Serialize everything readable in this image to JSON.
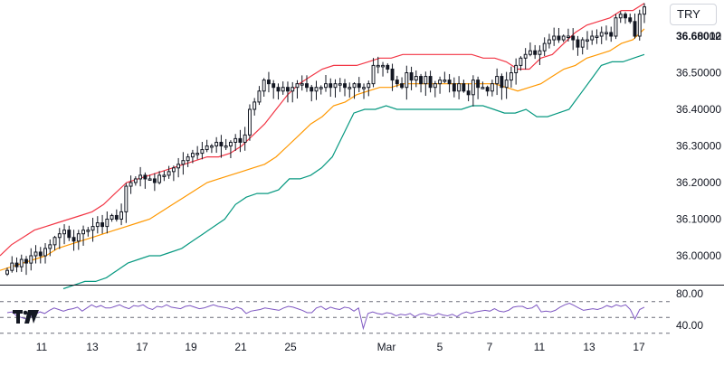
{
  "currency_selector": {
    "label": "TRY"
  },
  "logo": {
    "name": "tradingview-logo",
    "text": "TV"
  },
  "colors": {
    "candle": "#131722",
    "upper_band": "#f23645",
    "lower_band": "#089981",
    "basis": "#ff9800",
    "rsi": "#7e57c2",
    "grid_dash": "#6a6d78",
    "divider": "#131722"
  },
  "chart_data": [
    {
      "type": "candlestick",
      "title": "",
      "price_label": "36.68012",
      "x_ticks": [
        "11",
        "13",
        "17",
        "19",
        "21",
        "25",
        "Mar",
        "5",
        "7",
        "11",
        "13",
        "17"
      ],
      "y_ticks": [
        "36.60000",
        "36.50000",
        "36.40000",
        "36.30000",
        "36.20000",
        "36.10000",
        "36.00000"
      ],
      "ylim": [
        35.93,
        36.71
      ],
      "series": [
        {
          "name": "",
          "kind": "candles",
          "close": [
            35.96,
            35.98,
            35.97,
            35.99,
            35.98,
            36.0,
            36.01,
            36.0,
            36.02,
            36.03,
            36.05,
            36.06,
            36.07,
            36.05,
            36.04,
            36.06,
            36.07,
            36.07,
            36.08,
            36.09,
            36.08,
            36.1,
            36.11,
            36.1,
            36.12,
            36.19,
            36.2,
            36.21,
            36.22,
            36.21,
            36.21,
            36.2,
            36.22,
            36.22,
            36.23,
            36.24,
            36.25,
            36.26,
            36.27,
            36.28,
            36.28,
            36.29,
            36.3,
            36.3,
            36.31,
            36.3,
            36.3,
            36.31,
            36.32,
            36.31,
            36.33,
            36.4,
            36.42,
            36.45,
            36.48,
            36.47,
            36.46,
            36.45,
            36.46,
            36.45,
            36.46,
            36.47,
            36.47,
            36.46,
            36.45,
            36.46,
            36.46,
            36.47,
            36.46,
            36.47,
            36.47,
            36.46,
            36.46,
            36.47,
            36.46,
            36.46,
            36.47,
            36.52,
            36.52,
            36.52,
            36.51,
            36.48,
            36.47,
            36.46,
            36.5,
            36.48,
            36.49,
            36.47,
            36.49,
            36.46,
            36.47,
            36.48,
            36.48,
            36.47,
            36.45,
            36.47,
            36.45,
            36.44,
            36.48,
            36.46,
            36.46,
            36.45,
            36.47,
            36.49,
            36.46,
            36.48,
            36.5,
            36.52,
            36.54,
            36.55,
            36.56,
            36.55,
            36.56,
            36.58,
            36.59,
            36.6,
            36.59,
            36.6,
            36.6,
            36.59,
            36.57,
            36.59,
            36.59,
            36.6,
            36.6,
            36.61,
            36.61,
            36.6,
            36.65,
            36.66,
            36.65,
            36.64,
            36.6,
            36.66,
            36.68
          ]
        },
        {
          "name": "",
          "kind": "upper_band",
          "values": [
            36.0,
            36.03,
            36.05,
            36.07,
            36.08,
            36.09,
            36.1,
            36.11,
            36.12,
            36.14,
            36.17,
            36.2,
            36.21,
            36.22,
            36.23,
            36.24,
            36.25,
            36.26,
            36.27,
            36.27,
            36.28,
            36.3,
            36.33,
            36.36,
            36.4,
            36.44,
            36.47,
            36.49,
            36.51,
            36.52,
            36.52,
            36.52,
            36.53,
            36.54,
            36.54,
            36.55,
            36.55,
            36.55,
            36.55,
            36.55,
            36.55,
            36.55,
            36.54,
            36.54,
            36.53,
            36.51,
            36.51,
            36.54,
            36.55,
            36.58,
            36.61,
            36.63,
            36.64,
            36.65,
            36.67,
            36.67,
            36.69
          ]
        },
        {
          "name": "",
          "kind": "basis",
          "values": [
            35.96,
            35.97,
            35.98,
            35.99,
            36.0,
            36.02,
            36.03,
            36.04,
            36.05,
            36.06,
            36.07,
            36.08,
            36.09,
            36.1,
            36.12,
            36.14,
            36.16,
            36.18,
            36.2,
            36.21,
            36.22,
            36.23,
            36.24,
            36.25,
            36.27,
            36.3,
            36.33,
            36.36,
            36.38,
            36.41,
            36.42,
            36.44,
            36.45,
            36.46,
            36.46,
            36.47,
            36.47,
            36.47,
            36.47,
            36.47,
            36.47,
            36.47,
            36.47,
            36.47,
            36.46,
            36.45,
            36.46,
            36.47,
            36.49,
            36.51,
            36.52,
            36.54,
            36.55,
            36.56,
            36.58,
            36.59,
            36.62
          ]
        },
        {
          "name": "",
          "kind": "lower_band",
          "values": [
            35.91,
            35.92,
            35.93,
            35.93,
            35.94,
            35.96,
            35.98,
            35.99,
            36.0,
            36.0,
            36.01,
            36.02,
            36.04,
            36.06,
            36.08,
            36.1,
            36.14,
            36.16,
            36.17,
            36.17,
            36.18,
            36.21,
            36.21,
            36.22,
            36.24,
            36.27,
            36.33,
            36.39,
            36.4,
            36.4,
            36.41,
            36.4,
            36.4,
            36.4,
            36.4,
            36.4,
            36.4,
            36.4,
            36.41,
            36.41,
            36.4,
            36.39,
            36.39,
            36.4,
            36.38,
            36.38,
            36.39,
            36.4,
            36.44,
            36.48,
            36.52,
            36.53,
            36.53,
            36.54,
            36.55
          ]
        }
      ]
    },
    {
      "type": "line",
      "title": "",
      "y_ticks": [
        "80.00",
        "40.00"
      ],
      "levels": [
        70,
        50,
        30
      ],
      "ylim": [
        25,
        90
      ],
      "series": [
        {
          "name": "",
          "values": [
            56,
            57,
            52,
            50,
            48,
            51,
            54,
            57,
            55,
            59,
            62,
            60,
            58,
            60,
            61,
            63,
            58,
            62,
            66,
            63,
            65,
            62,
            62,
            64,
            66,
            63,
            61,
            65,
            64,
            66,
            62,
            60,
            64,
            63,
            66,
            63,
            62,
            61,
            64,
            65,
            63,
            61,
            62,
            64,
            66,
            64,
            63,
            62,
            60,
            63,
            61,
            55,
            58,
            59,
            60,
            62,
            61,
            60,
            59,
            62,
            64,
            63,
            61,
            59,
            56,
            56,
            62,
            64,
            60,
            63,
            61,
            60,
            63,
            62,
            58,
            62,
            36,
            55,
            57,
            55,
            54,
            56,
            55,
            52,
            54,
            53,
            55,
            51,
            54,
            55,
            53,
            52,
            55,
            53,
            52,
            54,
            51,
            55,
            57,
            55,
            57,
            58,
            59,
            58,
            61,
            58,
            57,
            59,
            63,
            64,
            64,
            61,
            62,
            66,
            57,
            58,
            57,
            59,
            63,
            66,
            68,
            65,
            62,
            59,
            60,
            61,
            60,
            62,
            65,
            63,
            66,
            64,
            66,
            60,
            48,
            60,
            63
          ]
        }
      ]
    }
  ]
}
